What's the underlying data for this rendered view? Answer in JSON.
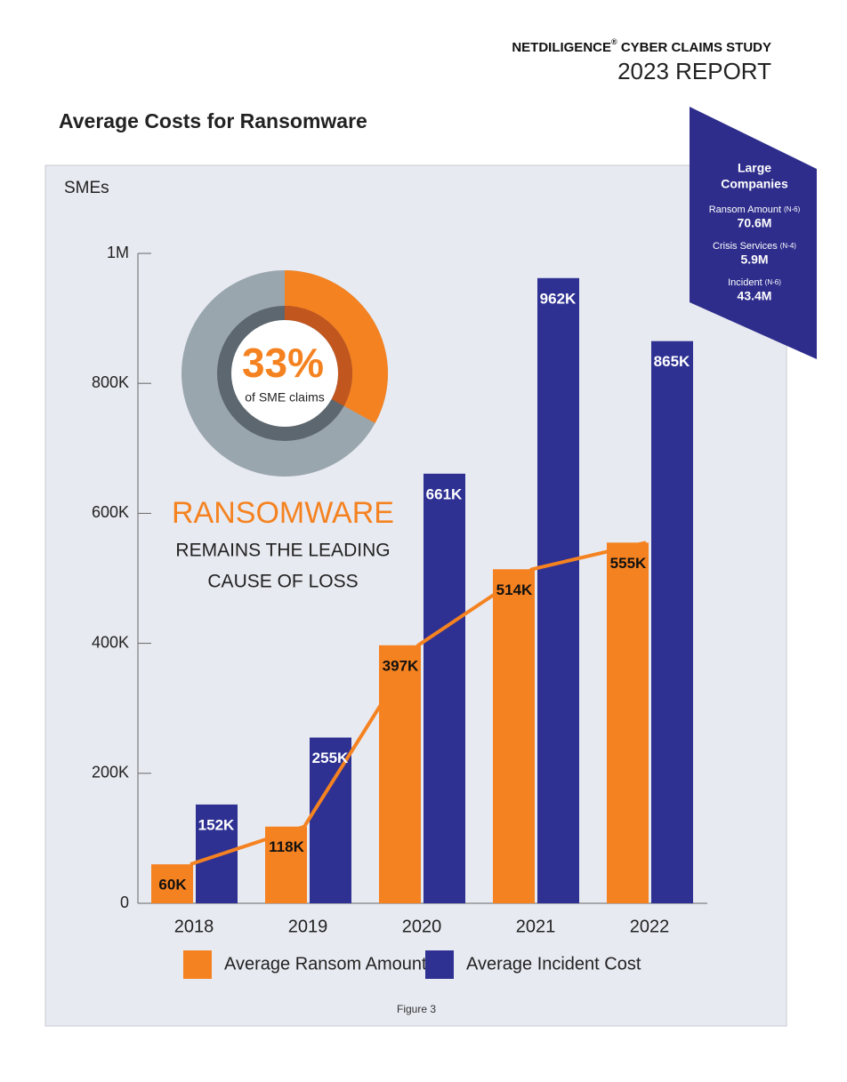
{
  "header": {
    "brand": "NETDILIGENCE",
    "mark": "®",
    "study": "CYBER CLAIMS STUDY",
    "report": "2023 REPORT"
  },
  "chart_data": {
    "type": "bar",
    "title": "Average Costs for Ransomware",
    "subtitle": "SMEs",
    "categories": [
      "2018",
      "2019",
      "2020",
      "2021",
      "2022"
    ],
    "series": [
      {
        "name": "Average Ransom Amount",
        "color": "#f58220",
        "line": true,
        "values": [
          60000,
          118000,
          397000,
          514000,
          555000
        ],
        "value_labels": [
          "60K",
          "118K",
          "397K",
          "514K",
          "555K"
        ]
      },
      {
        "name": "Average Incident Cost",
        "color": "#2e3192",
        "values": [
          152000,
          255000,
          661000,
          962000,
          865000
        ],
        "value_labels": [
          "152K",
          "255K",
          "661K",
          "962K",
          "865K"
        ]
      }
    ],
    "ylim": [
      0,
      1000000
    ],
    "yticks": [
      0,
      {
        "value": 200000,
        "label": "200K"
      },
      {
        "value": 400000,
        "label": "400K"
      },
      {
        "value": 600000,
        "label": "600K"
      },
      {
        "value": 800000,
        "label": "800K"
      },
      {
        "value": 1000000,
        "label": "1M"
      }
    ],
    "grid": false,
    "caption": "Figure 3"
  },
  "callout": {
    "value": 33,
    "value_label": "33%",
    "caption": "of SME claims",
    "headline": "RANSOMWARE",
    "lines": [
      "REMAINS THE LEADING",
      "CAUSE OF LOSS"
    ]
  },
  "large_companies": {
    "title": [
      "Large",
      "Companies"
    ],
    "items": [
      {
        "label": "Ransom Amount",
        "n": "(N-6)",
        "value": "70.6M"
      },
      {
        "label": "Crisis Services",
        "n": "(N-4)",
        "value": "5.9M"
      },
      {
        "label": "Incident",
        "n": "(N-6)",
        "value": "43.4M"
      }
    ]
  }
}
